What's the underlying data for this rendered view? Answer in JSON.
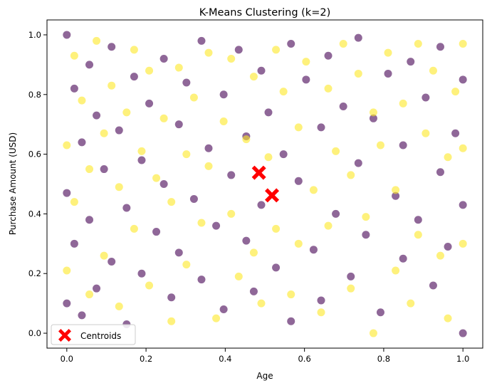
{
  "chart_data": {
    "type": "scatter",
    "title": "K-Means Clustering (k=2)",
    "xlabel": "Age",
    "ylabel": "Purchase Amount (USD)",
    "xlim": [
      -0.05,
      1.05
    ],
    "ylim": [
      -0.05,
      1.05
    ],
    "xticks": [
      0.0,
      0.2,
      0.4,
      0.6,
      0.8,
      1.0
    ],
    "yticks": [
      0.0,
      0.2,
      0.4,
      0.6,
      0.8,
      1.0
    ],
    "xtick_labels": [
      "0.0",
      "0.2",
      "0.4",
      "0.6",
      "0.8",
      "1.0"
    ],
    "ytick_labels": [
      "0.0",
      "0.2",
      "0.4",
      "0.6",
      "0.8",
      "1.0"
    ],
    "grid": false,
    "legend_position": "lower-left",
    "point_alpha": 0.6,
    "series": [
      {
        "name": "",
        "color": "#440154",
        "x": [
          0.0,
          0.0,
          0.0,
          0.019,
          0.019,
          0.038,
          0.038,
          0.057,
          0.057,
          0.075,
          0.075,
          0.094,
          0.113,
          0.113,
          0.132,
          0.151,
          0.151,
          0.17,
          0.189,
          0.189,
          0.208,
          0.226,
          0.245,
          0.245,
          0.264,
          0.283,
          0.283,
          0.302,
          0.321,
          0.34,
          0.34,
          0.358,
          0.377,
          0.396,
          0.396,
          0.415,
          0.434,
          0.453,
          0.453,
          0.472,
          0.491,
          0.491,
          0.509,
          0.528,
          0.547,
          0.566,
          0.566,
          0.585,
          0.604,
          0.623,
          0.642,
          0.642,
          0.66,
          0.679,
          0.698,
          0.717,
          0.736,
          0.736,
          0.755,
          0.774,
          0.792,
          0.811,
          0.83,
          0.849,
          0.849,
          0.868,
          0.887,
          0.906,
          0.925,
          0.943,
          0.943,
          0.962,
          0.981,
          1.0,
          1.0,
          1.0
        ],
        "y": [
          1.0,
          0.47,
          0.1,
          0.82,
          0.3,
          0.64,
          0.06,
          0.9,
          0.38,
          0.73,
          0.15,
          0.55,
          0.96,
          0.24,
          0.68,
          0.42,
          0.03,
          0.86,
          0.58,
          0.2,
          0.77,
          0.34,
          0.92,
          0.5,
          0.12,
          0.7,
          0.27,
          0.84,
          0.45,
          0.98,
          0.18,
          0.62,
          0.36,
          0.8,
          0.08,
          0.53,
          0.95,
          0.31,
          0.66,
          0.14,
          0.88,
          0.43,
          0.74,
          0.22,
          0.6,
          0.97,
          0.04,
          0.51,
          0.85,
          0.28,
          0.69,
          0.11,
          0.93,
          0.4,
          0.76,
          0.19,
          0.57,
          0.99,
          0.33,
          0.72,
          0.07,
          0.87,
          0.46,
          0.63,
          0.25,
          0.91,
          0.38,
          0.79,
          0.16,
          0.54,
          0.96,
          0.29,
          0.67,
          0.43,
          0.85,
          0.0
        ],
        "marker": "circle"
      },
      {
        "name": "",
        "color": "#fde725",
        "x": [
          0.0,
          0.0,
          0.019,
          0.019,
          0.038,
          0.057,
          0.057,
          0.075,
          0.094,
          0.094,
          0.113,
          0.132,
          0.132,
          0.151,
          0.17,
          0.17,
          0.189,
          0.208,
          0.208,
          0.226,
          0.245,
          0.264,
          0.264,
          0.283,
          0.302,
          0.302,
          0.321,
          0.34,
          0.358,
          0.358,
          0.377,
          0.396,
          0.415,
          0.415,
          0.434,
          0.453,
          0.472,
          0.472,
          0.491,
          0.509,
          0.528,
          0.528,
          0.547,
          0.566,
          0.585,
          0.585,
          0.604,
          0.623,
          0.642,
          0.66,
          0.66,
          0.679,
          0.698,
          0.717,
          0.717,
          0.736,
          0.755,
          0.774,
          0.774,
          0.792,
          0.811,
          0.83,
          0.83,
          0.849,
          0.868,
          0.887,
          0.887,
          0.906,
          0.925,
          0.943,
          0.962,
          0.962,
          0.981,
          1.0,
          1.0,
          1.0
        ],
        "y": [
          0.63,
          0.21,
          0.93,
          0.44,
          0.78,
          0.55,
          0.13,
          0.98,
          0.67,
          0.26,
          0.83,
          0.09,
          0.49,
          0.74,
          0.95,
          0.35,
          0.61,
          0.88,
          0.16,
          0.52,
          0.72,
          0.04,
          0.44,
          0.89,
          0.6,
          0.23,
          0.79,
          0.37,
          0.94,
          0.56,
          0.05,
          0.71,
          0.92,
          0.4,
          0.19,
          0.65,
          0.86,
          0.27,
          0.1,
          0.59,
          0.95,
          0.35,
          0.81,
          0.13,
          0.69,
          0.3,
          0.91,
          0.48,
          0.07,
          0.82,
          0.36,
          0.61,
          0.97,
          0.53,
          0.15,
          0.87,
          0.39,
          0.74,
          0.0,
          0.63,
          0.94,
          0.21,
          0.48,
          0.77,
          0.1,
          0.97,
          0.33,
          0.67,
          0.88,
          0.26,
          0.59,
          0.05,
          0.81,
          0.97,
          0.62,
          0.3
        ],
        "marker": "circle"
      },
      {
        "name": "Centroids",
        "color": "#ff0000",
        "x": [
          0.485,
          0.518
        ],
        "y": [
          0.538,
          0.462
        ],
        "marker": "X"
      }
    ]
  }
}
